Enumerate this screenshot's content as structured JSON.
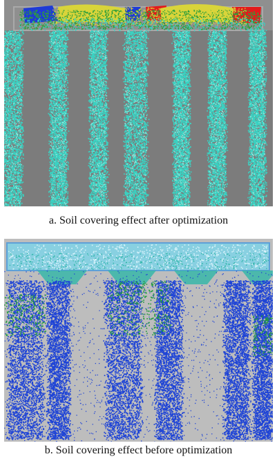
{
  "figure": {
    "panels": [
      {
        "id": "a",
        "caption": "a. Soil covering effect after optimization",
        "background_color": "#7c7c7c",
        "particle_color": "#39d3c3",
        "frame_color": "#a9a9a9",
        "accent_colors": [
          "#1f3bd6",
          "#d9d43a",
          "#e31b1b",
          "#2f9f3a"
        ]
      },
      {
        "id": "b",
        "caption": "b. Soil covering effect before optimization",
        "background_color": "#bdbdbd",
        "particle_color": "#1f44d6",
        "frame_color": "#5da0d8",
        "accent_colors": [
          "#2fb6a8",
          "#1f9a3a",
          "#7fd4e8"
        ]
      }
    ]
  }
}
